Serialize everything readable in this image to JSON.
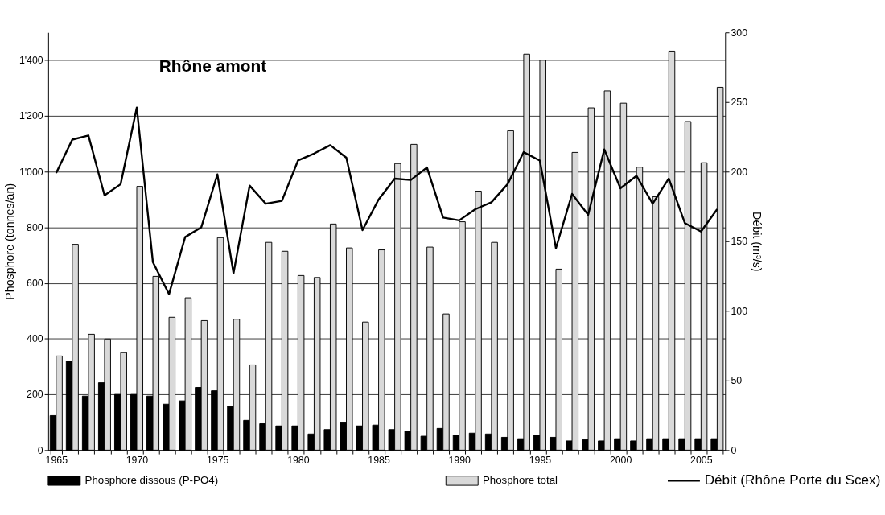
{
  "chart_data": {
    "type": "bar",
    "title": "Rhône amont",
    "categories": [
      "1965",
      null,
      null,
      null,
      null,
      "1970",
      null,
      null,
      null,
      null,
      "1975",
      null,
      null,
      null,
      null,
      "1980",
      null,
      null,
      null,
      null,
      "1985",
      null,
      null,
      null,
      null,
      "1990",
      null,
      null,
      null,
      null,
      "1995",
      null,
      null,
      null,
      null,
      "2000",
      null,
      null,
      null,
      null,
      "2005",
      null
    ],
    "series": [
      {
        "name": "Phosphore dissous (P-PO4)",
        "color": "#000000",
        "values": [
          124,
          320,
          194,
          242,
          200,
          200,
          194,
          165,
          177,
          225,
          213,
          157,
          107,
          95,
          87,
          87,
          58,
          74,
          98,
          87,
          90,
          74,
          69,
          50,
          78,
          54,
          61,
          58,
          46,
          41,
          54,
          46,
          33,
          37,
          33,
          41,
          33,
          41,
          41,
          41,
          41,
          41
        ]
      },
      {
        "name": "Phosphore total",
        "color": "#d9d9d9",
        "values": [
          338,
          739,
          416,
          399,
          350,
          947,
          624,
          477,
          547,
          465,
          763,
          470,
          306,
          746,
          714,
          627,
          620,
          812,
          726,
          460,
          719,
          1029,
          1098,
          729,
          489,
          820,
          930,
          746,
          1147,
          1422,
          1400,
          650,
          1069,
          1229,
          1290,
          1246,
          1016,
          910,
          1433,
          1180,
          1032,
          1303
        ]
      },
      {
        "name": "Débit (Rhône Porte du Scex)",
        "type": "line",
        "axis": "y2",
        "color": "#000000",
        "values": [
          199,
          223,
          226,
          183,
          191,
          246,
          135,
          112,
          153,
          160,
          198,
          127,
          190,
          177,
          179,
          208,
          213,
          219,
          210,
          158,
          180,
          195,
          194,
          203,
          167,
          165,
          173,
          178,
          191,
          214,
          208,
          145,
          184,
          169,
          216,
          188,
          197,
          177,
          195,
          163,
          157,
          173
        ]
      }
    ],
    "ylabel": "Phosphore (tonnes/an)",
    "y2label": "Débit (m³/s)",
    "ylim": [
      0,
      1500
    ],
    "yticks": [
      {
        "value": 0,
        "label": "0"
      },
      {
        "value": 200,
        "label": "200"
      },
      {
        "value": 400,
        "label": "400"
      },
      {
        "value": 600,
        "label": "600"
      },
      {
        "value": 800,
        "label": "800"
      },
      {
        "value": 1000,
        "label": "1'000"
      },
      {
        "value": 1200,
        "label": "1'200"
      },
      {
        "value": 1400,
        "label": "1'400"
      }
    ],
    "y2lim": [
      0,
      300
    ],
    "y2ticks": [
      0,
      50,
      100,
      150,
      200,
      250,
      300
    ],
    "grid": "y",
    "legend": "bottom",
    "marker": "none",
    "line_style": "solid"
  }
}
